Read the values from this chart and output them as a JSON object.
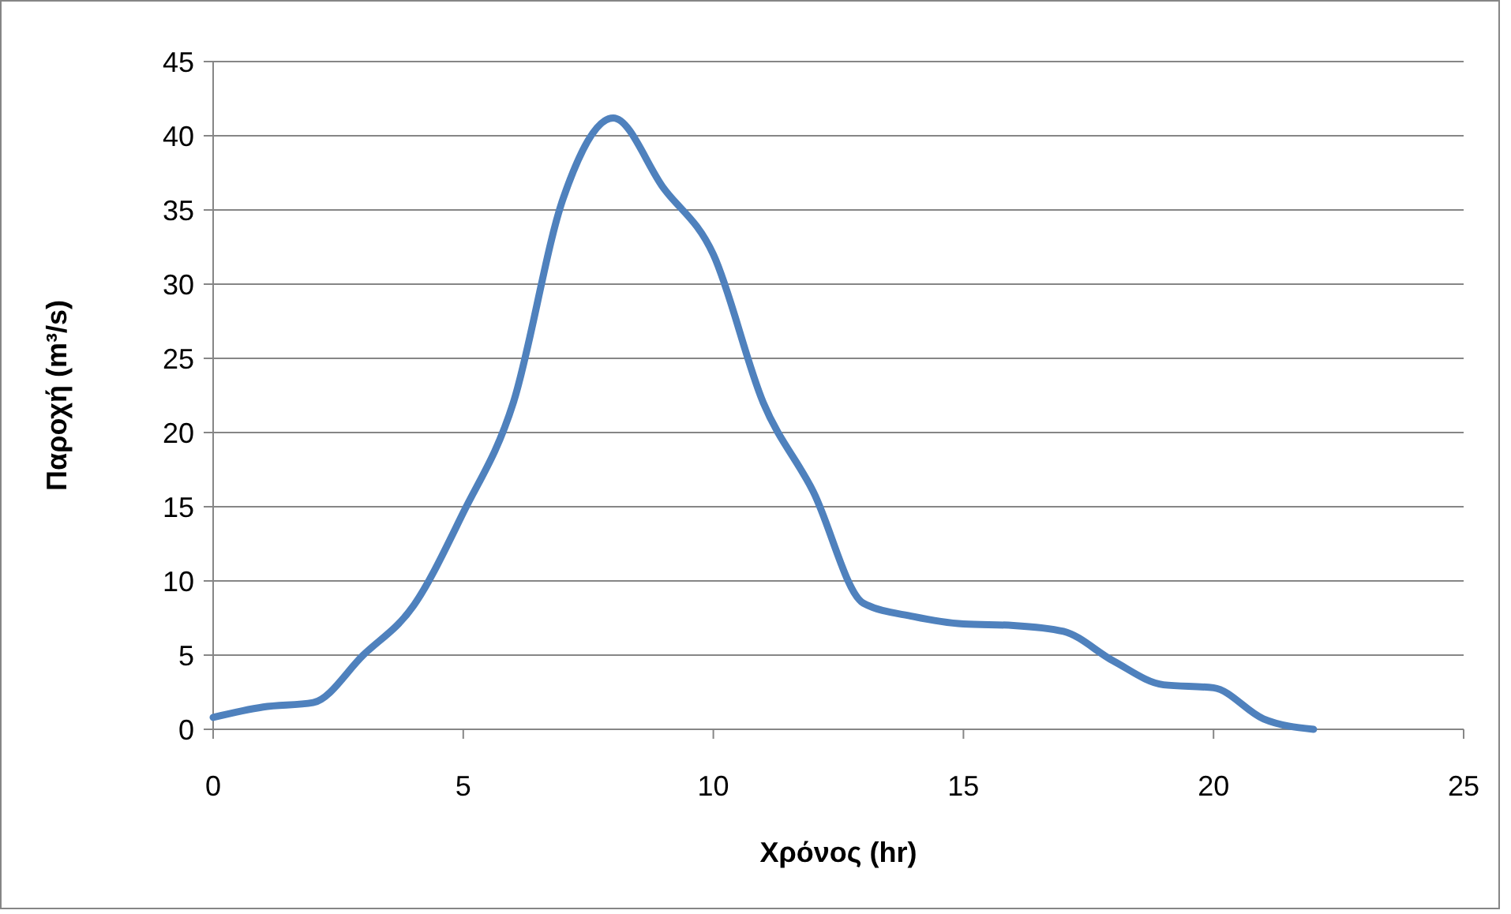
{
  "chart_data": {
    "type": "line",
    "xlabel": "Χρόνος (hr)",
    "ylabel": "Παροχή (m³/s)",
    "x": [
      0,
      1,
      2,
      3,
      4,
      5,
      6,
      7,
      8,
      9,
      10,
      11,
      12,
      13,
      14,
      15,
      16,
      17,
      18,
      19,
      20,
      21,
      22
    ],
    "series": [
      {
        "color": "#4f81bd",
        "values": [
          0.8,
          1.5,
          1.8,
          5,
          8.3,
          14.6,
          22,
          35.8,
          41.2,
          36.5,
          32,
          22,
          16,
          8.5,
          7.6,
          7.1,
          7,
          6.6,
          4.6,
          3,
          2.8,
          0.7,
          0
        ]
      }
    ],
    "xlim": [
      0,
      25
    ],
    "xticks": [
      0,
      5,
      10,
      15,
      20,
      25
    ],
    "ylim": [
      0,
      45
    ],
    "yticks": [
      0,
      5,
      10,
      15,
      20,
      25,
      30,
      35,
      40,
      45
    ],
    "grid": "y",
    "marker": "none",
    "line_style": "solid"
  }
}
